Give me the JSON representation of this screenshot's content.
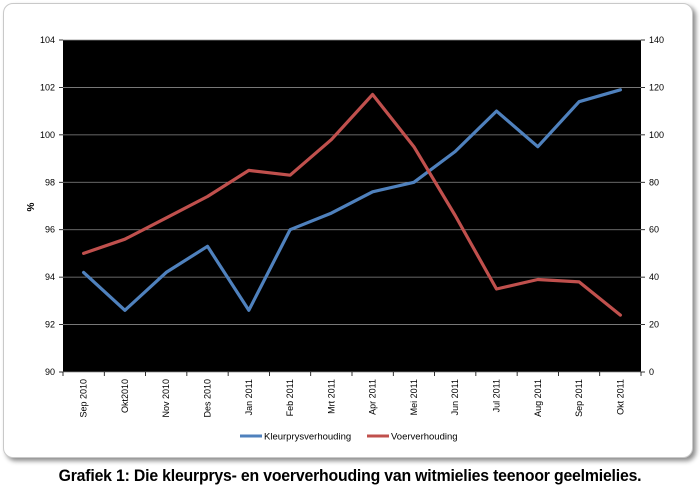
{
  "caption": "Grafiek 1: Die kleurprys- en voerverhouding van witmielies teenoor geelmielies.",
  "chart_data": {
    "type": "line",
    "categories": [
      "Sep 2010",
      "Okt2010",
      "Nov 2010",
      "Des 2010",
      "Jan 2011",
      "Feb 2011",
      "Mrt 2011",
      "Apr 2011",
      "Mei 2011",
      "Jun 2011",
      "Jul 2011",
      "Aug 2011",
      "Sep 2011",
      "Okt 2011"
    ],
    "ylabel": "%",
    "ylim": [
      90,
      104
    ],
    "ytick_step": 2,
    "y2lim": [
      0,
      140
    ],
    "y2tick_step": 20,
    "grid": true,
    "background": "#000000",
    "legend_position": "bottom",
    "series": [
      {
        "name": "Kleurprysverhouding",
        "axis": "left",
        "color": "#4f81bd",
        "values": [
          94.2,
          92.6,
          94.2,
          95.3,
          92.6,
          96.0,
          96.7,
          97.6,
          98.0,
          99.3,
          101.0,
          99.5,
          101.4,
          101.9
        ]
      },
      {
        "name": "Voerverhouding",
        "axis": "right",
        "color": "#c0504d",
        "values": [
          50,
          56,
          65,
          74,
          85,
          83,
          98,
          117,
          95,
          66,
          35,
          39,
          38,
          24
        ]
      }
    ]
  }
}
